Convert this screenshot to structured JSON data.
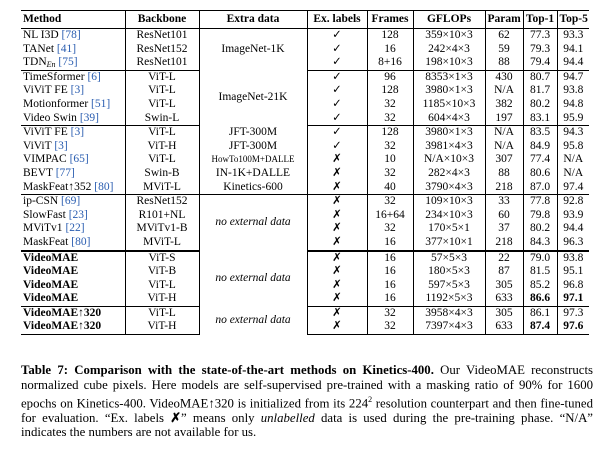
{
  "headers": {
    "method": "Method",
    "backbone": "Backbone",
    "extra": "Extra data",
    "labels": "Ex. labels",
    "frames": "Frames",
    "gflops": "GFLOPs",
    "param": "Param",
    "top1": "Top-1",
    "top5": "Top-5"
  },
  "groups": [
    {
      "extra_data": "ImageNet-1K",
      "rows": [
        {
          "name": "NL I3D",
          "cite": "[78]",
          "backbone": "ResNet101",
          "labels": "✓",
          "frames": "128",
          "gflops": "359×10×3",
          "param": "62",
          "top1": "77.3",
          "top5": "93.3"
        },
        {
          "name": "TANet",
          "cite": "[41]",
          "backbone": "ResNet152",
          "labels": "✓",
          "frames": "16",
          "gflops": "242×4×3",
          "param": "59",
          "top1": "79.3",
          "top5": "94.1"
        },
        {
          "name": "TDN",
          "name_sub": "En",
          "cite": "[75]",
          "backbone": "ResNet101",
          "labels": "✓",
          "frames": "8+16",
          "gflops": "198×10×3",
          "param": "88",
          "top1": "79.4",
          "top5": "94.4"
        }
      ]
    },
    {
      "extra_data": "ImageNet-21K",
      "rows": [
        {
          "name": "TimeSformer",
          "cite": "[6]",
          "backbone": "ViT-L",
          "labels": "✓",
          "frames": "96",
          "gflops": "8353×1×3",
          "param": "430",
          "top1": "80.7",
          "top5": "94.7"
        },
        {
          "name": "ViViT FE",
          "cite": "[3]",
          "backbone": "ViT-L",
          "labels": "✓",
          "frames": "128",
          "gflops": "3980×1×3",
          "param": "N/A",
          "top1": "81.7",
          "top5": "93.8"
        },
        {
          "name": "Motionformer",
          "cite": "[51]",
          "backbone": "ViT-L",
          "labels": "✓",
          "frames": "32",
          "gflops": "1185×10×3",
          "param": "382",
          "top1": "80.2",
          "top5": "94.8"
        },
        {
          "name": "Video Swin",
          "cite": "[39]",
          "backbone": "Swin-L",
          "labels": "✓",
          "frames": "32",
          "gflops": "604×4×3",
          "param": "197",
          "top1": "83.1",
          "top5": "95.9"
        }
      ]
    },
    {
      "rows": [
        {
          "name": "ViViT FE",
          "cite": "[3]",
          "backbone": "ViT-L",
          "extra": "JFT-300M",
          "labels": "✓",
          "frames": "128",
          "gflops": "3980×1×3",
          "param": "N/A",
          "top1": "83.5",
          "top5": "94.3"
        },
        {
          "name": "ViViT",
          "cite": "[3]",
          "backbone": "ViT-H",
          "extra": "JFT-300M",
          "labels": "✓",
          "frames": "32",
          "gflops": "3981×4×3",
          "param": "N/A",
          "top1": "84.9",
          "top5": "95.8"
        },
        {
          "name": "VIMPAC",
          "cite": "[65]",
          "backbone": "ViT-L",
          "extra": "HowTo100M+DALLE",
          "extra_small": true,
          "labels": "✗",
          "frames": "10",
          "gflops": "N/A×10×3",
          "param": "307",
          "top1": "77.4",
          "top5": "N/A"
        },
        {
          "name": "BEVT",
          "cite": "[77]",
          "backbone": "Swin-B",
          "extra": "IN-1K+DALLE",
          "labels": "✗",
          "frames": "32",
          "gflops": "282×4×3",
          "param": "88",
          "top1": "80.6",
          "top5": "N/A"
        },
        {
          "name": "MaskFeat↑352",
          "cite": "[80]",
          "backbone": "MViT-L",
          "extra": "Kinetics-600",
          "labels": "✗",
          "frames": "40",
          "gflops": "3790×4×3",
          "param": "218",
          "top1": "87.0",
          "top5": "97.4"
        }
      ]
    },
    {
      "extra_data": "no external data",
      "rows": [
        {
          "name": "ip-CSN",
          "cite": "[69]",
          "backbone": "ResNet152",
          "labels": "✗",
          "frames": "32",
          "gflops": "109×10×3",
          "param": "33",
          "top1": "77.8",
          "top5": "92.8"
        },
        {
          "name": "SlowFast",
          "cite": "[23]",
          "backbone": "R101+NL",
          "labels": "✗",
          "frames": "16+64",
          "gflops": "234×10×3",
          "param": "60",
          "top1": "79.8",
          "top5": "93.9"
        },
        {
          "name": "MViTv1",
          "cite": "[22]",
          "backbone": "MViTv1-B",
          "labels": "✗",
          "frames": "32",
          "gflops": "170×5×1",
          "param": "37",
          "top1": "80.2",
          "top5": "94.4"
        },
        {
          "name": "MaskFeat",
          "cite": "[80]",
          "backbone": "MViT-L",
          "labels": "✗",
          "frames": "16",
          "gflops": "377×10×1",
          "param": "218",
          "top1": "84.3",
          "top5": "96.3"
        }
      ]
    },
    {
      "extra_data": "no external data",
      "rows": [
        {
          "name": "VideoMAE",
          "backbone": "ViT-S",
          "labels": "✗",
          "frames": "16",
          "gflops": "57×5×3",
          "param": "22",
          "top1": "79.0",
          "top5": "93.8"
        },
        {
          "name": "VideoMAE",
          "backbone": "ViT-B",
          "labels": "✗",
          "frames": "16",
          "gflops": "180×5×3",
          "param": "87",
          "top1": "81.5",
          "top5": "95.1"
        },
        {
          "name": "VideoMAE",
          "backbone": "ViT-L",
          "labels": "✗",
          "frames": "16",
          "gflops": "597×5×3",
          "param": "305",
          "top1": "85.2",
          "top5": "96.8"
        },
        {
          "name": "VideoMAE",
          "backbone": "ViT-H",
          "labels": "✗",
          "frames": "16",
          "gflops": "1192×5×3",
          "param": "633",
          "top1": "86.6",
          "top5": "97.1",
          "top1_bold": true,
          "top5_bold": true
        }
      ]
    },
    {
      "extra_data": "no external data",
      "rows": [
        {
          "name": "VideoMAE↑320",
          "backbone": "ViT-L",
          "labels": "✗",
          "frames": "32",
          "gflops": "3958×4×3",
          "param": "305",
          "top1": "86.1",
          "top5": "97.3"
        },
        {
          "name": "VideoMAE↑320",
          "backbone": "ViT-H",
          "labels": "✗",
          "frames": "32",
          "gflops": "7397×4×3",
          "param": "633",
          "top1": "87.4",
          "top5": "97.6",
          "top1_bold": true,
          "top5_bold": true
        }
      ]
    }
  ],
  "caption": {
    "label": "Table 7:",
    "title": "Comparison with the state-of-the-art methods on Kinetics-400.",
    "p1": "Our VideoMAE reconstructs normalized cube pixels. Here models are self-supervised pre-trained with a masking ratio of 90% for 1600 epochs on Kinetics-400. VideoMAE↑320 is initialized from its 224",
    "sup": "2",
    "p2": " resolution counterpart and then fine-tuned for evaluation. “Ex. labels ",
    "cross": "✗",
    "p3": "” means only ",
    "unlabelled": "unlabelled",
    "p4": " data is used during the pre-training phase. “N/A” indicates the numbers are not available for us."
  }
}
